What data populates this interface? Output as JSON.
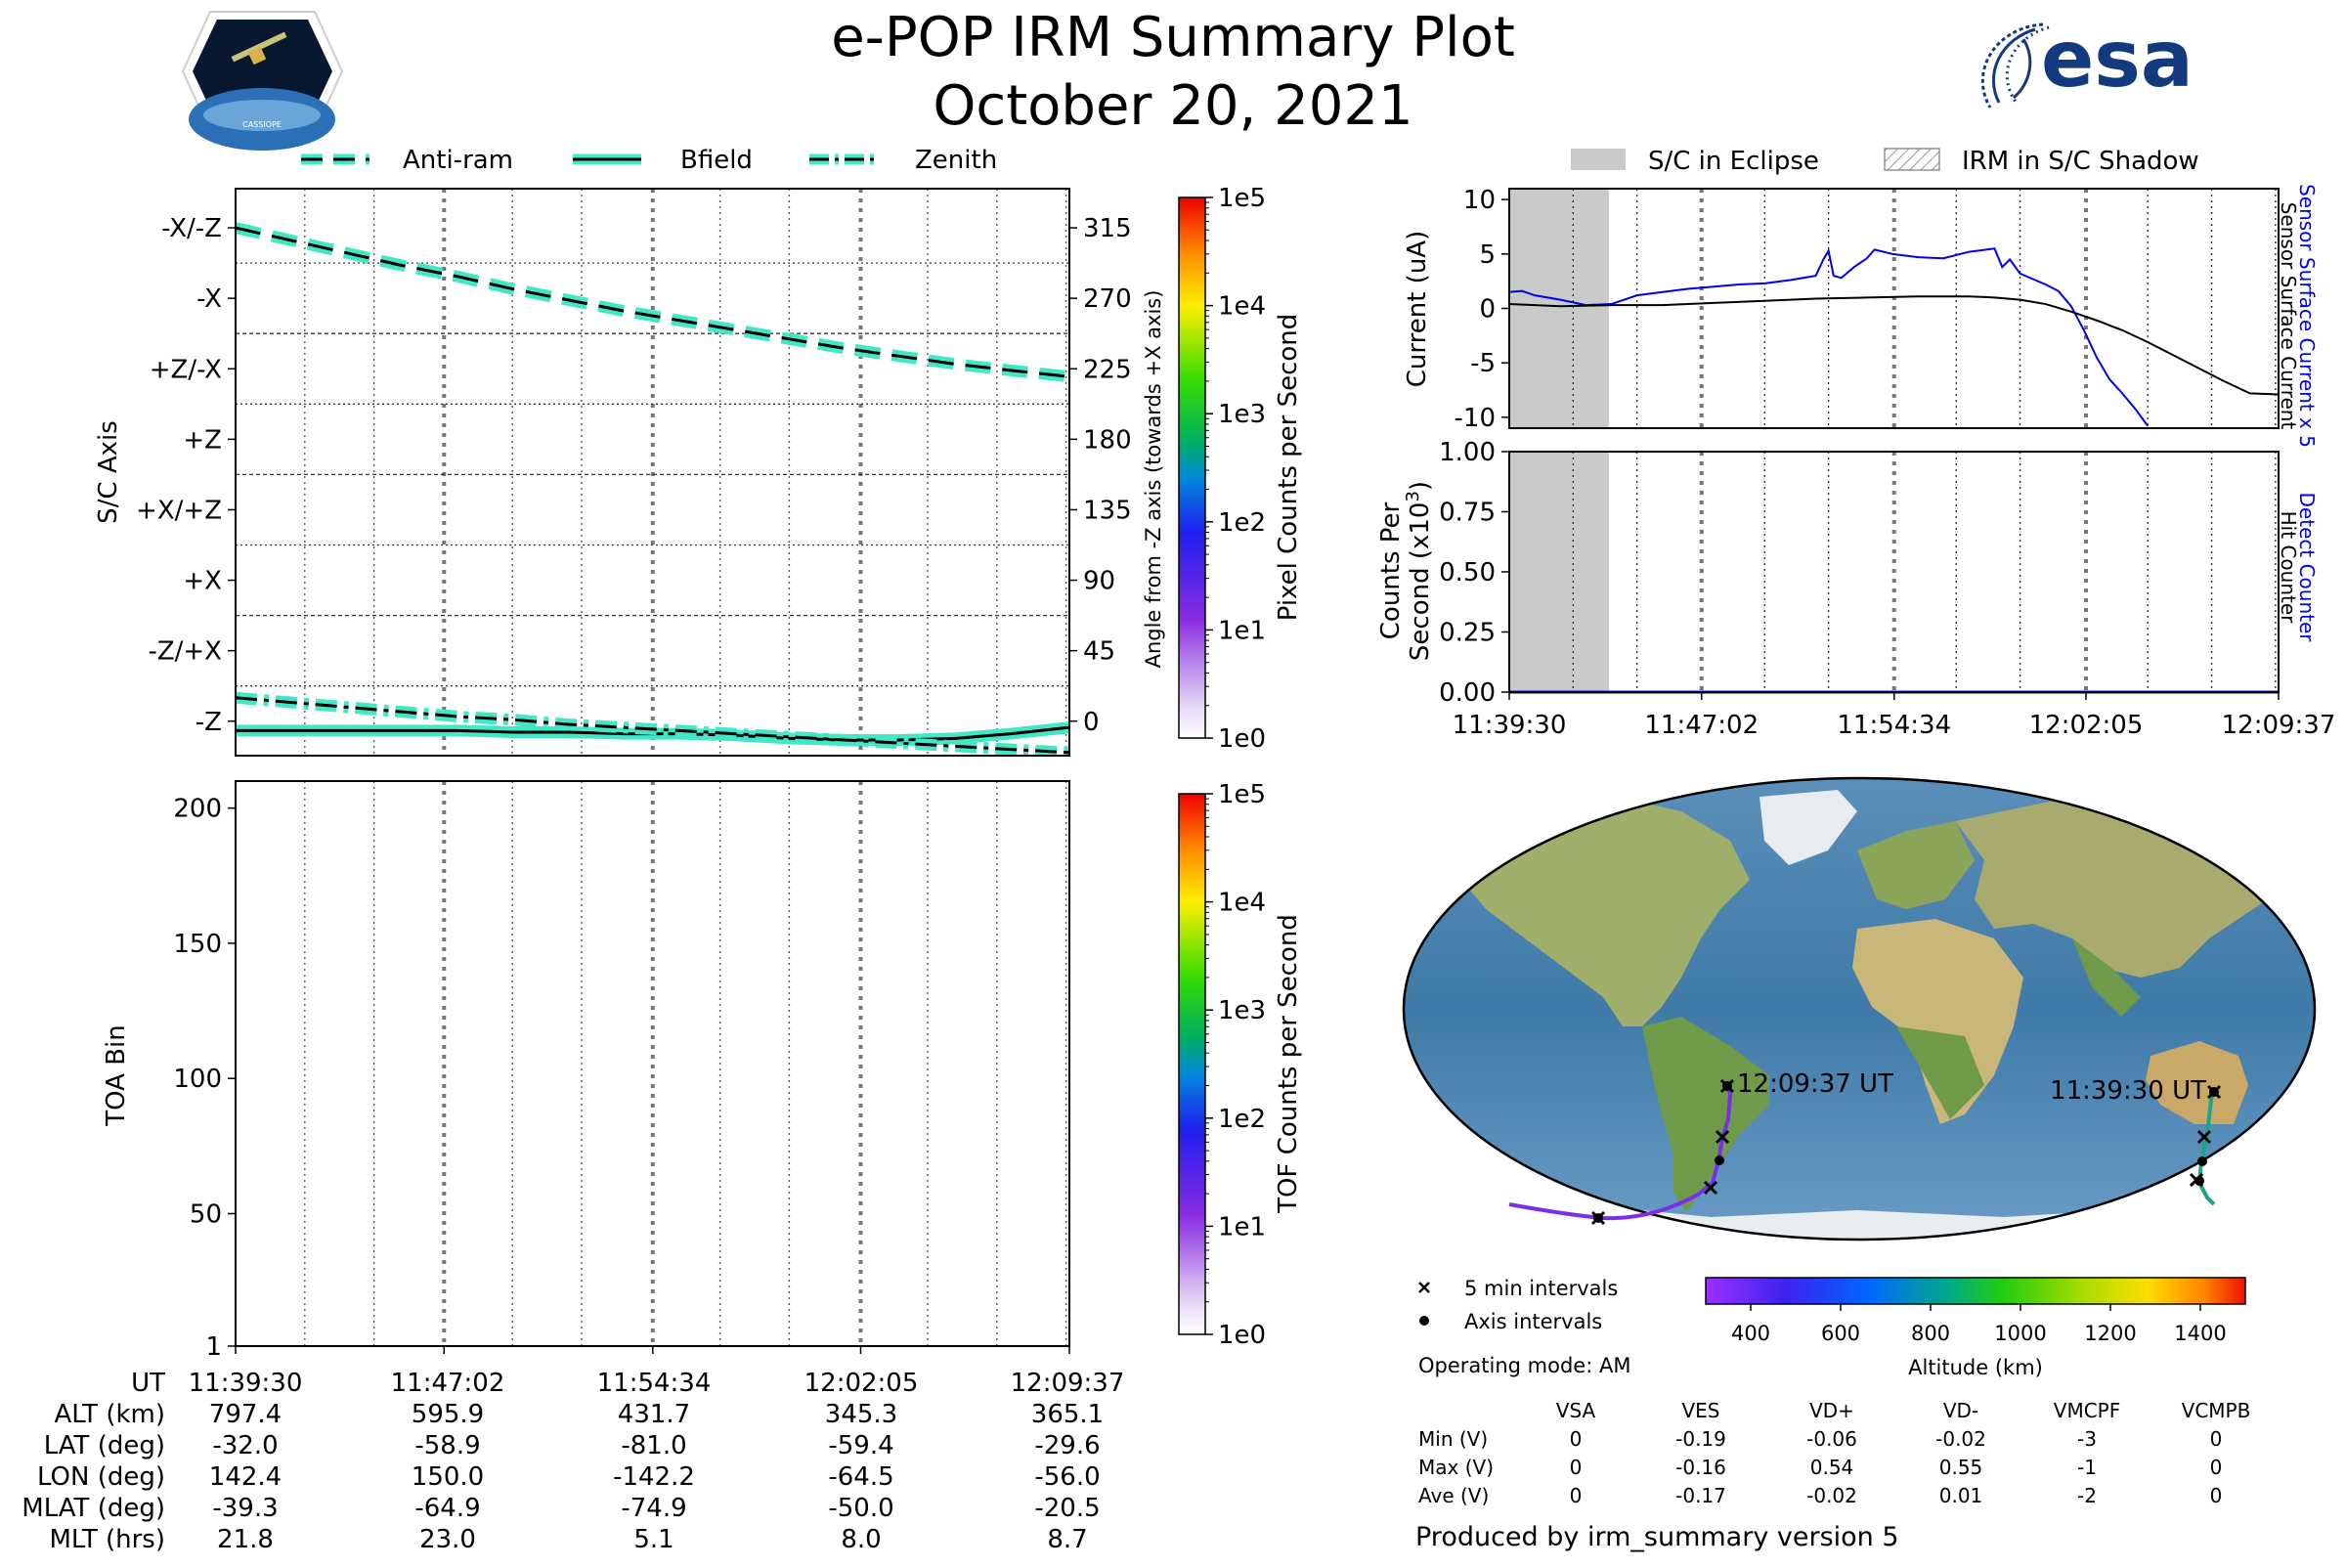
{
  "header": {
    "title": "e-POP IRM Summary Plot",
    "date": "October 20, 2021",
    "cassiope_logo_text": "CASSIOPE",
    "esa_logo_text": "esa"
  },
  "colors": {
    "accent_cyan": "#40e8c8",
    "eclipse_gray": "#c8cbca",
    "sensor_current_blue": "#0000ee",
    "surface_current_black": "#000000"
  },
  "time_ticks": [
    "11:39:30",
    "11:47:02",
    "11:54:34",
    "12:02:05",
    "12:09:37"
  ],
  "orbit_table": {
    "rows": [
      {
        "label": "UT",
        "values": [
          "11:39:30",
          "11:47:02",
          "11:54:34",
          "12:02:05",
          "12:09:37"
        ]
      },
      {
        "label": "ALT (km)",
        "values": [
          "797.4",
          "595.9",
          "431.7",
          "345.3",
          "365.1"
        ]
      },
      {
        "label": "LAT (deg)",
        "values": [
          "-32.0",
          "-58.9",
          "-81.0",
          "-59.4",
          "-29.6"
        ]
      },
      {
        "label": "LON (deg)",
        "values": [
          "142.4",
          "150.0",
          "-142.2",
          "-64.5",
          "-56.0"
        ]
      },
      {
        "label": "MLAT (deg)",
        "values": [
          "-39.3",
          "-64.9",
          "-74.9",
          "-50.0",
          "-20.5"
        ]
      },
      {
        "label": "MLT (hrs)",
        "values": [
          "21.8",
          "23.0",
          "5.1",
          "8.0",
          "8.7"
        ]
      }
    ]
  },
  "colorbars": [
    {
      "label": "Pixel Counts per Second",
      "ticks": [
        "1e5",
        "1e4",
        "1e3",
        "1e2",
        "1e1",
        "1e0"
      ]
    },
    {
      "label": "TOF Counts per Second",
      "ticks": [
        "1e5",
        "1e4",
        "1e3",
        "1e2",
        "1e1",
        "1e0"
      ]
    }
  ],
  "map": {
    "start_label": "11:39:30 UT",
    "end_label": "12:09:37 UT",
    "legend": [
      "5 min intervals",
      "Axis intervals"
    ],
    "altitude_bar_label": "Altitude (km)",
    "altitude_ticks": [
      "400",
      "600",
      "800",
      "1000",
      "1200",
      "1400"
    ],
    "altitude_range": [
      300,
      1500
    ]
  },
  "operating_mode": "Operating mode: AM",
  "voltage_table": {
    "headers": [
      "VSA",
      "VES",
      "VD+",
      "VD-",
      "VMCPF",
      "VCMPB"
    ],
    "rows": [
      {
        "label": "Min (V)",
        "values": [
          "0",
          "-0.19",
          "-0.06",
          "-0.02",
          "-3",
          "0"
        ]
      },
      {
        "label": "Max (V)",
        "values": [
          "0",
          "-0.16",
          "0.54",
          "0.55",
          "-1",
          "0"
        ]
      },
      {
        "label": "Ave (V)",
        "values": [
          "0",
          "-0.17",
          "-0.02",
          "0.01",
          "-2",
          "0"
        ]
      }
    ]
  },
  "footer": "Produced by irm_summary version 5",
  "chart_data": [
    {
      "type": "line",
      "legend": [
        "Anti-ram",
        "Bfield",
        "Zenith"
      ],
      "ylabel": "S/C Axis",
      "ylabel_right": "Angle from -Z axis (towards +X axis)",
      "ytick_labels": [
        "-X/-Z",
        "-X",
        "+Z/-X",
        "+Z",
        "+X/+Z",
        "+X",
        "-Z/+X",
        "-Z"
      ],
      "ytick_values": [
        315,
        270,
        225,
        180,
        135,
        90,
        45,
        0
      ],
      "ylim": [
        -22,
        340
      ],
      "xlim": [
        0,
        30.12
      ],
      "x_ticks_min": [
        0,
        7.53,
        15.07,
        22.58,
        30.12
      ],
      "series": [
        {
          "name": "Anti-ram",
          "x": [
            0,
            2,
            4,
            6,
            8,
            10,
            12,
            14,
            16,
            18,
            20,
            22,
            24,
            26,
            28,
            30.12
          ],
          "y": [
            315,
            307,
            299,
            291,
            284,
            276,
            269,
            262,
            256,
            250,
            244,
            238,
            233,
            228,
            224,
            220
          ]
        },
        {
          "name": "Bfield",
          "x": [
            0,
            2,
            4,
            6,
            8,
            10,
            12,
            14,
            16,
            18,
            20,
            22,
            24,
            26,
            28,
            30.12
          ],
          "y": [
            -6,
            -6,
            -6,
            -6,
            -6,
            -7,
            -7,
            -8,
            -8,
            -9,
            -11,
            -12,
            -12,
            -11,
            -8,
            -4
          ]
        },
        {
          "name": "Zenith",
          "x": [
            0,
            2,
            4,
            6,
            8,
            10,
            12,
            14,
            16,
            18,
            20,
            22,
            24,
            26,
            28,
            30.12
          ],
          "y": [
            15,
            12,
            9,
            6,
            3,
            1,
            -2,
            -4,
            -6,
            -8,
            -10,
            -12,
            -14,
            -16,
            -18,
            -20
          ]
        }
      ]
    },
    {
      "type": "heatmap",
      "ylabel": "TOA Bin",
      "yticks": [
        1,
        50,
        100,
        150,
        200
      ],
      "ylim": [
        1,
        210
      ],
      "xlim": [
        0,
        30.12
      ]
    },
    {
      "type": "line",
      "legend": [
        "S/C in Eclipse",
        "IRM in S/C Shadow"
      ],
      "ylabel": "Current (uA)",
      "right_labels": [
        "Sensor Surface Current x 5",
        "Sensor Surface Current"
      ],
      "yticks": [
        10,
        5,
        0,
        -5,
        -10
      ],
      "ylim": [
        -11,
        11
      ],
      "xlim": [
        0,
        30.12
      ],
      "eclipse_x": [
        0,
        3.9
      ],
      "series": [
        {
          "name": "Sensor Surface Current x 5",
          "x": [
            0,
            0.5,
            1,
            2,
            3,
            4,
            5,
            6,
            7,
            8,
            9,
            10,
            11,
            12,
            12.3,
            12.5,
            12.7,
            13,
            13.5,
            14,
            14.3,
            15,
            16,
            17,
            18,
            19,
            19.3,
            19.6,
            20,
            21,
            21.5,
            22,
            22.5,
            23,
            23.5,
            24,
            24.5,
            25
          ],
          "y": [
            1.5,
            1.6,
            1.2,
            0.8,
            0.3,
            0.4,
            1.2,
            1.5,
            1.8,
            2.0,
            2.2,
            2.3,
            2.6,
            3.0,
            4.5,
            5.3,
            3.0,
            2.8,
            3.8,
            4.6,
            5.4,
            5.0,
            4.7,
            4.6,
            5.2,
            5.5,
            3.8,
            4.5,
            3.2,
            2.2,
            1.6,
            0.2,
            -2.0,
            -4.5,
            -6.5,
            -7.8,
            -9.2,
            -10.8
          ]
        },
        {
          "name": "Sensor Surface Current",
          "x": [
            0,
            2,
            4,
            6,
            8,
            10,
            12,
            14,
            16,
            18,
            19,
            20,
            21,
            22,
            23,
            24,
            25,
            26,
            27,
            28,
            29,
            30.12
          ],
          "y": [
            0.4,
            0.2,
            0.3,
            0.3,
            0.5,
            0.7,
            0.9,
            1.0,
            1.1,
            1.1,
            1.0,
            0.8,
            0.4,
            -0.3,
            -1.1,
            -2.0,
            -3.1,
            -4.3,
            -5.5,
            -6.7,
            -7.8,
            -7.9
          ]
        }
      ]
    },
    {
      "type": "line",
      "ylabel": "Counts Per Second (x10^3)",
      "ylabel_line1": "Counts Per",
      "ylabel_line2": "Second (x10",
      "ylabel_exp": "3",
      "ylabel_close": ")",
      "right_labels": [
        "Detect Counter",
        "Hit Counter"
      ],
      "yticks": [
        "1.00",
        "0.75",
        "0.50",
        "0.25",
        "0.00"
      ],
      "ylim": [
        0,
        1
      ],
      "xlim": [
        0,
        30.12
      ],
      "series": [
        {
          "name": "Detect Counter",
          "x": [
            0,
            30.12
          ],
          "y": [
            0,
            0
          ]
        }
      ]
    }
  ]
}
